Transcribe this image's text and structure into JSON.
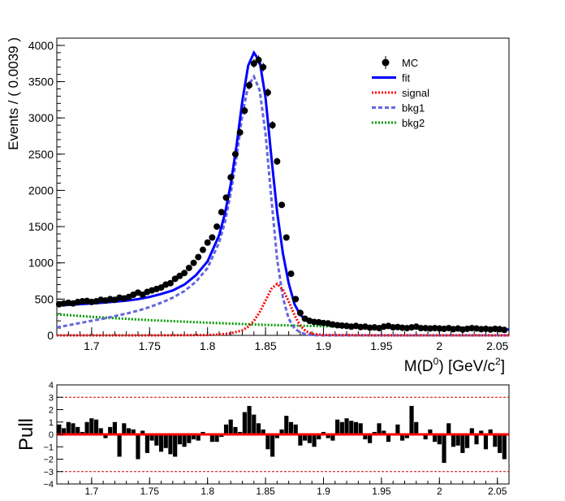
{
  "chart_data": [
    {
      "type": "scatter",
      "title": "",
      "xlabel": "M(D",
      "xlabel_sup": "0",
      "xlabel_unit": ") [GeV/c",
      "xlabel_unit_sup": "2",
      "xlabel_close": "]",
      "ylabel": "Events / ( 0.0039 )",
      "xlim": [
        1.67,
        2.06
      ],
      "ylim": [
        0,
        4100
      ],
      "xticks": [
        "1.7",
        "1.75",
        "1.8",
        "1.85",
        "1.9",
        "1.95",
        "2",
        "2.05"
      ],
      "yticks": [
        "0",
        "500",
        "1000",
        "1500",
        "2000",
        "2500",
        "3000",
        "3500",
        "4000"
      ],
      "legend_position": "top-right",
      "legend": [
        {
          "label": "MC",
          "style": "marker",
          "color": "#000000"
        },
        {
          "label": "fit",
          "style": "solid",
          "color": "#0000ff"
        },
        {
          "label": "signal",
          "style": "dotted",
          "color": "#ff0000"
        },
        {
          "label": "bkg1",
          "style": "dashed",
          "color": "#6666dd"
        },
        {
          "label": "bkg2",
          "style": "dotted",
          "color": "#009900"
        }
      ],
      "series": [
        {
          "name": "MC",
          "x": [
            1.672,
            1.676,
            1.68,
            1.684,
            1.688,
            1.692,
            1.696,
            1.7,
            1.704,
            1.708,
            1.712,
            1.716,
            1.72,
            1.724,
            1.728,
            1.732,
            1.736,
            1.74,
            1.744,
            1.748,
            1.752,
            1.756,
            1.76,
            1.764,
            1.768,
            1.772,
            1.776,
            1.78,
            1.784,
            1.788,
            1.792,
            1.796,
            1.8,
            1.804,
            1.808,
            1.812,
            1.816,
            1.82,
            1.824,
            1.828,
            1.832,
            1.836,
            1.84,
            1.844,
            1.848,
            1.852,
            1.856,
            1.86,
            1.864,
            1.868,
            1.872,
            1.876,
            1.88,
            1.884,
            1.888,
            1.892,
            1.896,
            1.9,
            1.904,
            1.908,
            1.912,
            1.916,
            1.92,
            1.924,
            1.928,
            1.932,
            1.936,
            1.94,
            1.944,
            1.948,
            1.952,
            1.956,
            1.96,
            1.964,
            1.968,
            1.972,
            1.976,
            1.98,
            1.984,
            1.988,
            1.992,
            1.996,
            2.0,
            2.004,
            2.008,
            2.012,
            2.016,
            2.02,
            2.024,
            2.028,
            2.032,
            2.036,
            2.04,
            2.044,
            2.048,
            2.052,
            2.056
          ],
          "y": [
            430,
            440,
            450,
            440,
            460,
            470,
            475,
            460,
            470,
            490,
            480,
            500,
            490,
            520,
            510,
            530,
            560,
            590,
            560,
            600,
            620,
            640,
            660,
            700,
            720,
            780,
            820,
            860,
            930,
            1000,
            1080,
            1180,
            1280,
            1350,
            1500,
            1700,
            1900,
            2180,
            2500,
            2800,
            3100,
            3450,
            3750,
            3800,
            3700,
            3350,
            2900,
            2400,
            1800,
            1350,
            850,
            500,
            310,
            230,
            200,
            185,
            180,
            170,
            165,
            150,
            140,
            135,
            130,
            120,
            130,
            115,
            120,
            105,
            110,
            100,
            120,
            130,
            110,
            115,
            105,
            100,
            110,
            120,
            100,
            100,
            95,
            100,
            95,
            90,
            100,
            85,
            95,
            80,
            90,
            100,
            95,
            85,
            90,
            80,
            90,
            85,
            75
          ]
        },
        {
          "name": "fit",
          "x": [
            1.67,
            1.68,
            1.69,
            1.7,
            1.71,
            1.72,
            1.73,
            1.74,
            1.75,
            1.76,
            1.77,
            1.78,
            1.79,
            1.8,
            1.81,
            1.815,
            1.82,
            1.825,
            1.83,
            1.835,
            1.84,
            1.845,
            1.85,
            1.855,
            1.86,
            1.865,
            1.87,
            1.875,
            1.88,
            1.885,
            1.89,
            1.9,
            1.91,
            1.92,
            1.93,
            1.94,
            1.95,
            1.96,
            1.97,
            1.98,
            1.99,
            2.0,
            2.01,
            2.02,
            2.03,
            2.04,
            2.05,
            2.06
          ],
          "y": [
            410,
            420,
            430,
            440,
            450,
            465,
            480,
            500,
            530,
            570,
            620,
            700,
            830,
            1020,
            1380,
            1680,
            2080,
            2620,
            3230,
            3720,
            3900,
            3780,
            3280,
            2470,
            1700,
            1130,
            720,
            430,
            280,
            220,
            185,
            160,
            145,
            135,
            125,
            118,
            112,
            108,
            104,
            101,
            98,
            95,
            92,
            90,
            87,
            84,
            82,
            80
          ]
        },
        {
          "name": "signal",
          "x": [
            1.67,
            1.75,
            1.8,
            1.81,
            1.82,
            1.83,
            1.835,
            1.84,
            1.845,
            1.85,
            1.855,
            1.86,
            1.865,
            1.87,
            1.875,
            1.88,
            1.885,
            1.89,
            1.9,
            1.95,
            2.06
          ],
          "y": [
            0,
            0,
            5,
            12,
            28,
            70,
            120,
            200,
            320,
            480,
            640,
            710,
            630,
            470,
            280,
            130,
            55,
            20,
            4,
            0,
            0
          ]
        },
        {
          "name": "bkg1",
          "x": [
            1.67,
            1.68,
            1.69,
            1.7,
            1.71,
            1.72,
            1.73,
            1.74,
            1.75,
            1.76,
            1.77,
            1.78,
            1.79,
            1.8,
            1.81,
            1.815,
            1.82,
            1.825,
            1.83,
            1.835,
            1.84,
            1.845,
            1.85,
            1.855,
            1.86,
            1.865,
            1.87,
            1.875,
            1.88,
            1.885,
            1.89,
            1.9,
            1.91,
            1.95,
            2.06
          ],
          "y": [
            110,
            140,
            170,
            200,
            230,
            265,
            300,
            340,
            390,
            450,
            520,
            610,
            740,
            930,
            1280,
            1560,
            1960,
            2460,
            3040,
            3440,
            3570,
            3380,
            2780,
            1900,
            1050,
            520,
            230,
            95,
            40,
            15,
            5,
            0,
            0,
            0,
            0
          ]
        },
        {
          "name": "bkg2",
          "x": [
            1.67,
            1.7,
            1.75,
            1.8,
            1.85,
            1.9,
            1.95,
            2.0,
            2.06
          ],
          "y": [
            290,
            255,
            210,
            175,
            145,
            125,
            108,
            96,
            85
          ]
        }
      ]
    },
    {
      "type": "bar",
      "title": "",
      "ylabel": "Pull",
      "xlim": [
        1.67,
        2.06
      ],
      "ylim": [
        -4,
        4
      ],
      "xticks": [
        "1.7",
        "1.75",
        "1.8",
        "1.85",
        "1.9",
        "1.95",
        "2",
        "2.05"
      ],
      "yticks": [
        "−4",
        "−3",
        "−2",
        "−1",
        "0",
        "1",
        "2",
        "3",
        "4"
      ],
      "reference_lines": [
        3,
        -3
      ],
      "zero_line_color": "#ff0000",
      "x": [
        1.672,
        1.676,
        1.68,
        1.684,
        1.688,
        1.692,
        1.696,
        1.7,
        1.704,
        1.708,
        1.712,
        1.716,
        1.72,
        1.724,
        1.728,
        1.732,
        1.736,
        1.74,
        1.744,
        1.748,
        1.752,
        1.756,
        1.76,
        1.764,
        1.768,
        1.772,
        1.776,
        1.78,
        1.784,
        1.788,
        1.792,
        1.796,
        1.8,
        1.804,
        1.808,
        1.812,
        1.816,
        1.82,
        1.824,
        1.828,
        1.832,
        1.836,
        1.84,
        1.844,
        1.848,
        1.852,
        1.856,
        1.86,
        1.864,
        1.868,
        1.872,
        1.876,
        1.88,
        1.884,
        1.888,
        1.892,
        1.896,
        1.9,
        1.904,
        1.908,
        1.912,
        1.916,
        1.92,
        1.924,
        1.928,
        1.932,
        1.936,
        1.94,
        1.944,
        1.948,
        1.952,
        1.956,
        1.96,
        1.964,
        1.968,
        1.972,
        1.976,
        1.98,
        1.984,
        1.988,
        1.992,
        1.996,
        2.0,
        2.004,
        2.008,
        2.012,
        2.016,
        2.02,
        2.024,
        2.028,
        2.032,
        2.036,
        2.04,
        2.044,
        2.048,
        2.052,
        2.056
      ],
      "values": [
        0.8,
        0.5,
        1.0,
        0.9,
        0.6,
        0.2,
        1.0,
        1.3,
        1.2,
        0.5,
        -0.3,
        0.6,
        1.0,
        -1.8,
        0.9,
        0.5,
        0.4,
        -2.0,
        0.3,
        -1.5,
        -0.5,
        -0.9,
        -1.4,
        -1.1,
        -1.6,
        -1.8,
        -0.8,
        -1.0,
        -0.7,
        -0.4,
        -0.5,
        0.2,
        0.1,
        -0.6,
        -0.6,
        -0.2,
        0.8,
        1.2,
        0.6,
        0.2,
        1.8,
        2.3,
        1.6,
        0.9,
        0.4,
        -1.2,
        -1.8,
        -0.3,
        0.4,
        1.5,
        1.0,
        0.8,
        -0.9,
        -0.5,
        -0.7,
        -1.0,
        -0.4,
        0.2,
        -0.3,
        -0.5,
        1.2,
        1.0,
        1.3,
        1.1,
        1.0,
        0.9,
        -0.4,
        -0.7,
        0.2,
        0.9,
        0.3,
        -0.6,
        0.1,
        0.8,
        -0.5,
        -0.3,
        2.3,
        1.0,
        0.1,
        -0.4,
        0.4,
        -0.6,
        -0.8,
        -2.3,
        0.9,
        -1.0,
        -0.9,
        -1.5,
        -1.1,
        0.5,
        -0.8,
        0.3,
        -1.2,
        0.4,
        -1.0,
        -1.5,
        -2.0
      ]
    }
  ]
}
